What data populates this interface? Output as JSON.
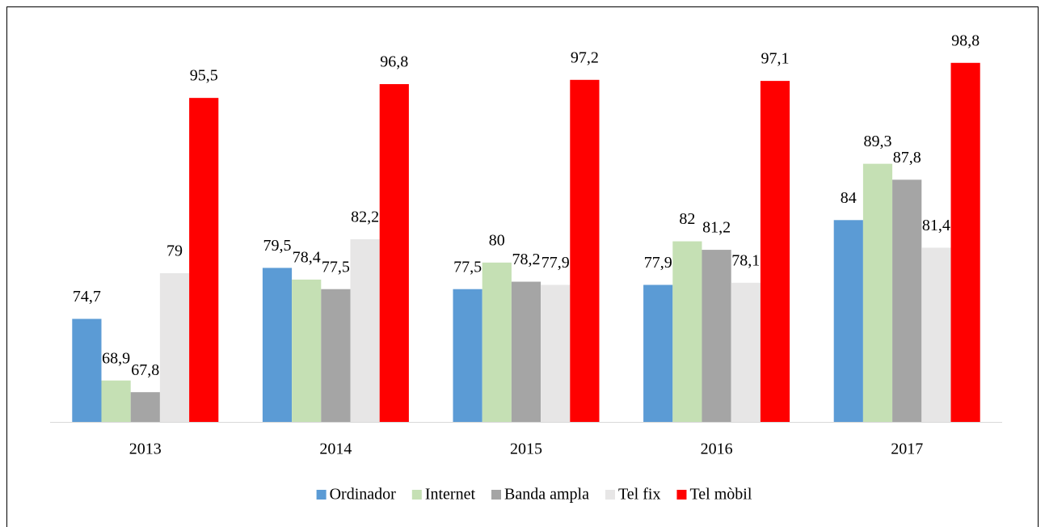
{
  "chart_data": {
    "type": "bar",
    "categories": [
      "2013",
      "2014",
      "2015",
      "2016",
      "2017"
    ],
    "ylim": [
      65,
      100
    ],
    "legend": "bottom",
    "series": [
      {
        "name": "Ordinador",
        "color": "#5b9bd5",
        "values": [
          74.7,
          79.5,
          77.5,
          77.9,
          84
        ],
        "value_labels": [
          "74,7",
          "79,5",
          "77,5",
          "77,9",
          "84"
        ]
      },
      {
        "name": "Internet",
        "color": "#c5e0b4",
        "values": [
          68.9,
          78.4,
          80,
          82,
          89.3
        ],
        "value_labels": [
          "68,9",
          "78,4",
          "80",
          "82",
          "89,3"
        ]
      },
      {
        "name": "Banda ampla",
        "color": "#a5a5a5",
        "values": [
          67.8,
          77.5,
          78.2,
          81.2,
          87.8
        ],
        "value_labels": [
          "67,8",
          "77,5",
          "78,2",
          "81,2",
          "87,8"
        ]
      },
      {
        "name": "Tel fix",
        "color": "#e7e6e6",
        "values": [
          79,
          82.2,
          77.9,
          78.1,
          81.4
        ],
        "value_labels": [
          "79",
          "82,2",
          "77,9",
          "78,1",
          "81,4"
        ]
      },
      {
        "name": "Tel mòbil",
        "color": "#ff0000",
        "values": [
          95.5,
          96.8,
          97.2,
          97.1,
          98.8
        ],
        "value_labels": [
          "95,5",
          "96,8",
          "97,2",
          "97,1",
          "98,8"
        ]
      }
    ]
  }
}
